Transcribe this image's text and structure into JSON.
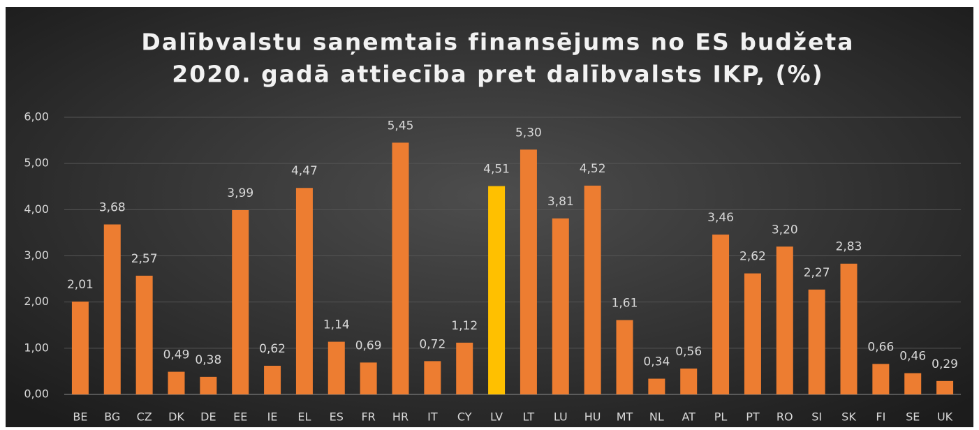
{
  "chart_data": {
    "type": "bar",
    "title": [
      "Dalībvalstu saņemtais finansējums no ES budžeta",
      "2020. gadā attiecība pret dalībvalsts IKP, (%)"
    ],
    "categories": [
      "BE",
      "BG",
      "CZ",
      "DK",
      "DE",
      "EE",
      "IE",
      "EL",
      "ES",
      "FR",
      "HR",
      "IT",
      "CY",
      "LV",
      "LT",
      "LU",
      "HU",
      "MT",
      "NL",
      "AT",
      "PL",
      "PT",
      "RO",
      "SI",
      "SK",
      "FI",
      "SE",
      "UK"
    ],
    "values": [
      2.01,
      3.68,
      2.57,
      0.49,
      0.38,
      3.99,
      0.62,
      4.47,
      1.14,
      0.69,
      5.45,
      0.72,
      1.12,
      4.51,
      5.3,
      3.81,
      4.52,
      1.61,
      0.34,
      0.56,
      3.46,
      2.62,
      3.2,
      2.27,
      2.83,
      0.66,
      0.46,
      0.29
    ],
    "value_labels": [
      "2,01",
      "3,68",
      "2,57",
      "0,49",
      "0,38",
      "3,99",
      "0,62",
      "4,47",
      "1,14",
      "0,69",
      "5,45",
      "0,72",
      "1,12",
      "4,51",
      "5,30",
      "3,81",
      "4,52",
      "1,61",
      "0,34",
      "0,56",
      "3,46",
      "2,62",
      "3,20",
      "2,27",
      "2,83",
      "0,66",
      "0,46",
      "0,29"
    ],
    "colors": [
      "#ed7d31",
      "#ed7d31",
      "#ed7d31",
      "#ed7d31",
      "#ed7d31",
      "#ed7d31",
      "#ed7d31",
      "#ed7d31",
      "#ed7d31",
      "#ed7d31",
      "#ed7d31",
      "#ed7d31",
      "#ed7d31",
      "#ffc000",
      "#ed7d31",
      "#ed7d31",
      "#ed7d31",
      "#ed7d31",
      "#ed7d31",
      "#ed7d31",
      "#ed7d31",
      "#ed7d31",
      "#ed7d31",
      "#ed7d31",
      "#ed7d31",
      "#ed7d31",
      "#ed7d31",
      "#ed7d31"
    ],
    "ylim": [
      0,
      6
    ],
    "yticks": [
      {
        "value": 0,
        "label": "0,00"
      },
      {
        "value": 1,
        "label": "1,00"
      },
      {
        "value": 2,
        "label": "2,00"
      },
      {
        "value": 3,
        "label": "3,00"
      },
      {
        "value": 4,
        "label": "4,00"
      },
      {
        "value": 5,
        "label": "5,00"
      },
      {
        "value": 6,
        "label": "6,00"
      }
    ],
    "grid": true
  }
}
